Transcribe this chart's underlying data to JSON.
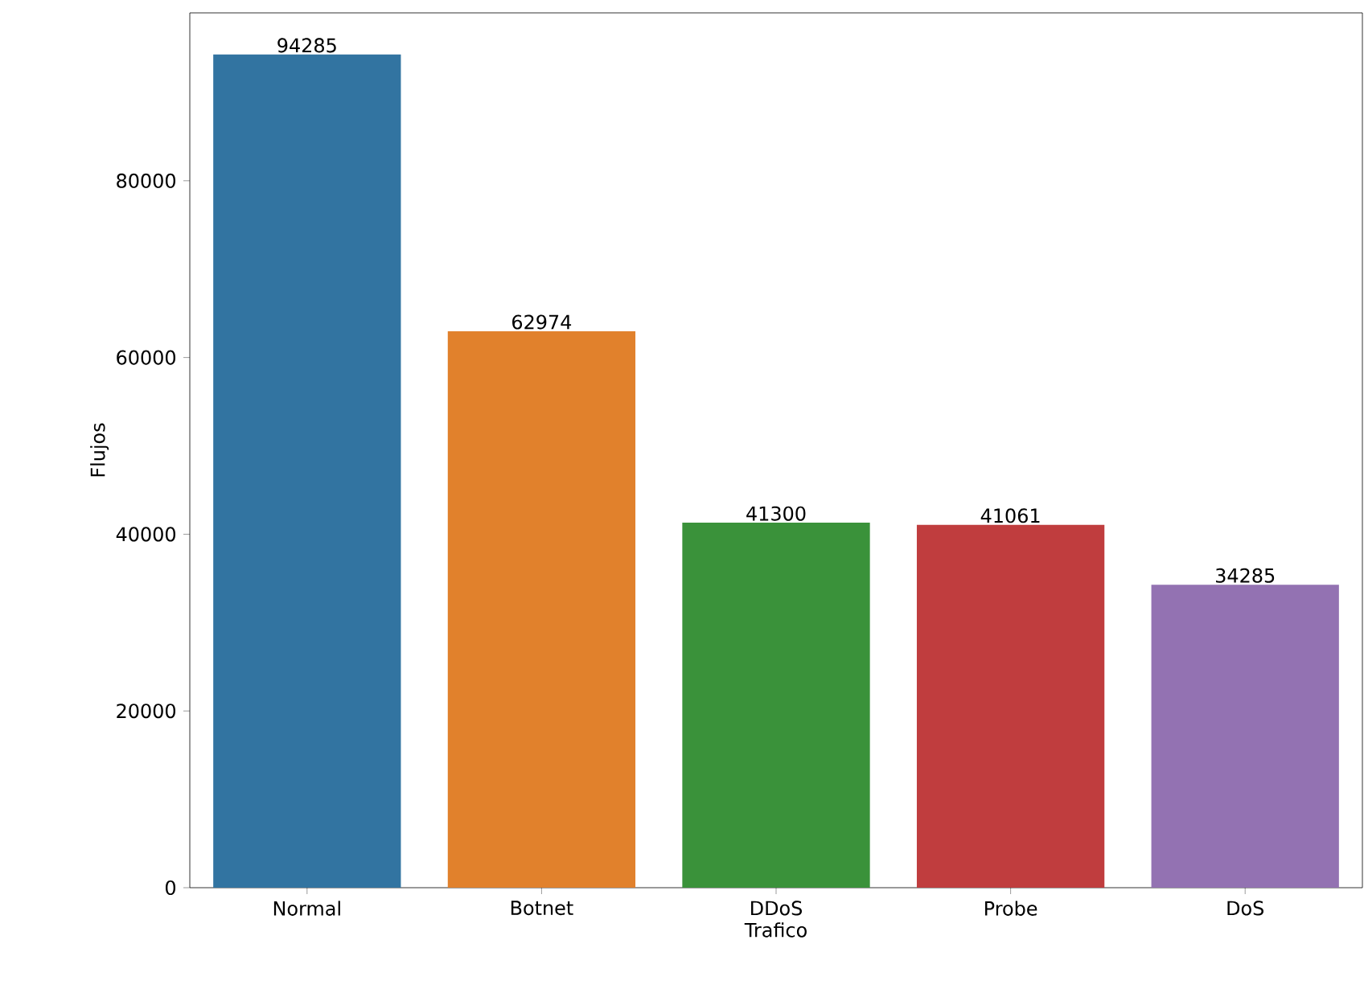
{
  "chart_data": {
    "type": "bar",
    "xlabel": "Trafico",
    "ylabel": "Flujos",
    "categories": [
      "Normal",
      "Botnet",
      "DDoS",
      "Probe",
      "DoS"
    ],
    "values": [
      94285,
      62974,
      41300,
      41061,
      34285
    ],
    "colors": [
      "#3274a1",
      "#e1812c",
      "#3a923a",
      "#c03d3e",
      "#9372b2"
    ],
    "ylim": [
      0,
      99000
    ],
    "yticks": [
      0,
      20000,
      40000,
      60000,
      80000
    ],
    "data_labels": true,
    "grid": false
  }
}
